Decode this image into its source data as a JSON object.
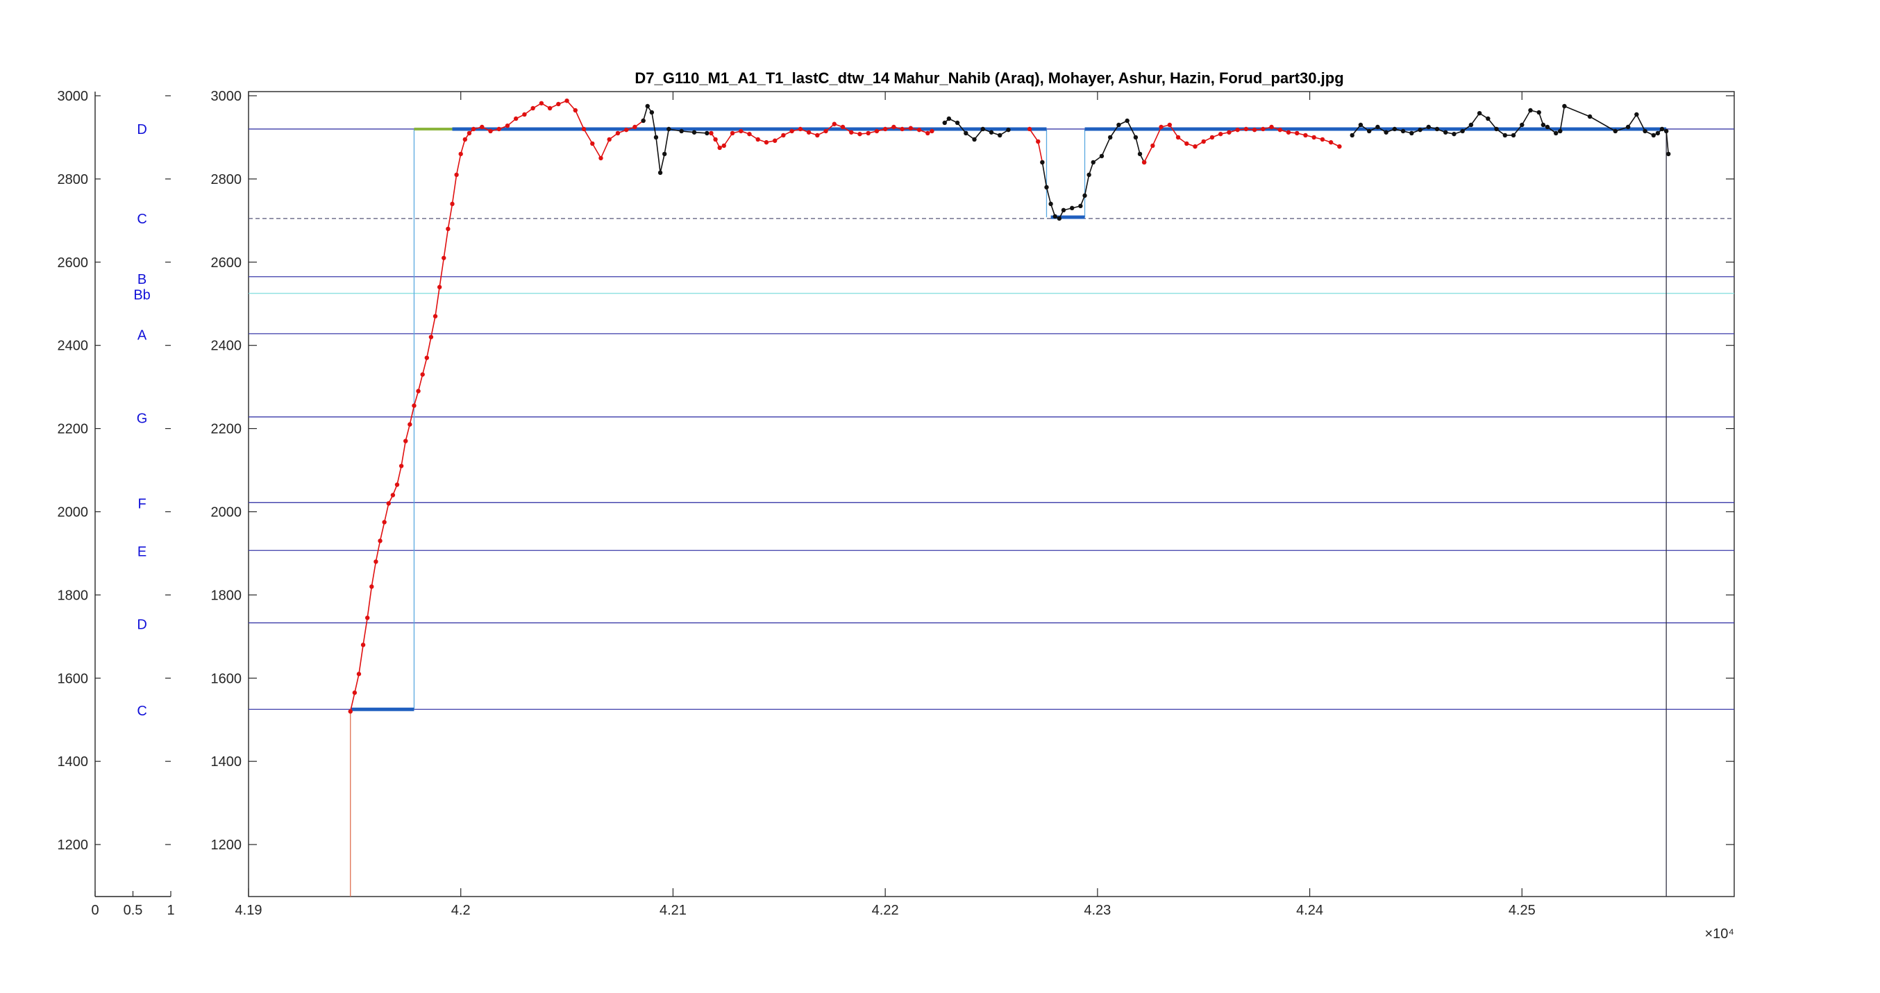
{
  "chart_data": [
    {
      "type": "scatter",
      "role": "note-axis",
      "xticks": [
        "0",
        "0.5",
        "1"
      ],
      "xlim": [
        0,
        1
      ],
      "ylim": [
        1075,
        3010
      ],
      "yticks": [
        "1200",
        "1400",
        "1600",
        "1800",
        "2000",
        "2200",
        "2400",
        "2600",
        "2800",
        "3000"
      ],
      "notes": [
        {
          "label": "D",
          "y": 2920
        },
        {
          "label": "C",
          "y": 2705
        },
        {
          "label": "B",
          "y": 2560
        },
        {
          "label": "Bb",
          "y": 2522
        },
        {
          "label": "A",
          "y": 2425
        },
        {
          "label": "G",
          "y": 2225
        },
        {
          "label": "F",
          "y": 2020
        },
        {
          "label": "E",
          "y": 1905
        },
        {
          "label": "D",
          "y": 1730
        },
        {
          "label": "C",
          "y": 1522
        }
      ]
    },
    {
      "type": "line",
      "role": "pitch-track",
      "title": "D7_G110_M1_A1_T1_lastC_dtw_14 Mahur_Nahib (Araq), Mohayer, Ashur, Hazin, Forud_part30.jpg",
      "xlabel": "",
      "ylabel": "",
      "x_exponent": "×10⁴",
      "xlim": [
        4.19,
        4.26
      ],
      "ylim": [
        1075,
        3010
      ],
      "xticks": [
        "4.19",
        "4.2",
        "4.21",
        "4.22",
        "4.23",
        "4.24",
        "4.25"
      ],
      "xtick_values": [
        4.19,
        4.2,
        4.21,
        4.22,
        4.23,
        4.24,
        4.25
      ],
      "yticks": [
        "1200",
        "1400",
        "1600",
        "1800",
        "2000",
        "2200",
        "2400",
        "2600",
        "2800",
        "3000"
      ],
      "ytick_values": [
        1200,
        1400,
        1600,
        1800,
        2000,
        2200,
        2400,
        2600,
        2800,
        3000
      ],
      "grid": false,
      "reference_lines": [
        {
          "y": 2920,
          "color": "#3a3aa8",
          "style": "solid"
        },
        {
          "y": 2705,
          "color": "#555577",
          "style": "dashed"
        },
        {
          "y": 2565,
          "color": "#3a3aa8",
          "style": "solid"
        },
        {
          "y": 2525,
          "color": "#7fdede",
          "style": "solid"
        },
        {
          "y": 2428,
          "color": "#3a3aa8",
          "style": "solid"
        },
        {
          "y": 2228,
          "color": "#3a3aa8",
          "style": "solid"
        },
        {
          "y": 2022,
          "color": "#3a3aa8",
          "style": "solid"
        },
        {
          "y": 1907,
          "color": "#3a3aa8",
          "style": "solid"
        },
        {
          "y": 1733,
          "color": "#3a3aa8",
          "style": "solid"
        },
        {
          "y": 1525,
          "color": "#3a3aa8",
          "style": "solid"
        }
      ],
      "steps": {
        "color": "#1f5fbf",
        "segments": [
          {
            "x": [
              4.1948,
              4.1978
            ],
            "y": 1525
          },
          {
            "x": [
              4.1996,
              4.2276
            ],
            "y": 2920
          },
          {
            "x": [
              4.2278,
              4.2294
            ],
            "y": 2708
          },
          {
            "x": [
              4.2294,
              4.2568
            ],
            "y": 2920
          }
        ],
        "green_segment": {
          "x": [
            4.1978,
            4.1996
          ],
          "y": 2920,
          "color": "#8ab43c"
        }
      },
      "transition_lines": [
        {
          "x": 4.1978,
          "y": [
            1525,
            2920
          ],
          "color": "#5aa8e0"
        },
        {
          "x": 4.2276,
          "y": [
            2920,
            2708
          ],
          "color": "#5aa8e0"
        },
        {
          "x": 4.2294,
          "y": [
            2708,
            2920
          ],
          "color": "#5aa8e0"
        },
        {
          "x": 4.1948,
          "y": [
            1075,
            1525
          ],
          "color": "#e07050"
        },
        {
          "x": 4.2568,
          "y": [
            1075,
            2920
          ],
          "color": "#333344"
        }
      ],
      "series": [
        {
          "color": "#e01010",
          "points": [
            [
              4.1948,
              1520
            ],
            [
              4.195,
              1565
            ],
            [
              4.1952,
              1610
            ],
            [
              4.1954,
              1680
            ],
            [
              4.1956,
              1745
            ],
            [
              4.1958,
              1820
            ],
            [
              4.196,
              1880
            ],
            [
              4.1962,
              1930
            ],
            [
              4.1964,
              1975
            ],
            [
              4.1966,
              2020
            ],
            [
              4.1968,
              2040
            ],
            [
              4.197,
              2065
            ],
            [
              4.1972,
              2110
            ],
            [
              4.1974,
              2170
            ],
            [
              4.1976,
              2210
            ],
            [
              4.1978,
              2255
            ],
            [
              4.198,
              2290
            ],
            [
              4.1982,
              2330
            ],
            [
              4.1984,
              2370
            ],
            [
              4.1986,
              2420
            ],
            [
              4.1988,
              2470
            ],
            [
              4.199,
              2540
            ],
            [
              4.1992,
              2610
            ],
            [
              4.1994,
              2680
            ],
            [
              4.1996,
              2740
            ],
            [
              4.1998,
              2810
            ],
            [
              4.2,
              2860
            ],
            [
              4.2002,
              2895
            ],
            [
              4.2004,
              2910
            ],
            [
              4.2006,
              2920
            ],
            [
              4.201,
              2925
            ],
            [
              4.2014,
              2915
            ],
            [
              4.2018,
              2920
            ],
            [
              4.2022,
              2928
            ],
            [
              4.2026,
              2945
            ],
            [
              4.203,
              2955
            ],
            [
              4.2034,
              2970
            ],
            [
              4.2038,
              2982
            ],
            [
              4.2042,
              2970
            ],
            [
              4.2046,
              2980
            ],
            [
              4.205,
              2988
            ],
            [
              4.2054,
              2965
            ],
            [
              4.2058,
              2920
            ],
            [
              4.2062,
              2885
            ],
            [
              4.2066,
              2850
            ],
            [
              4.207,
              2895
            ],
            [
              4.2074,
              2910
            ],
            [
              4.2078,
              2918
            ],
            [
              4.2082,
              2925
            ],
            [
              4.2086,
              2940
            ]
          ]
        },
        {
          "color": "#111111",
          "points": [
            [
              4.2086,
              2940
            ],
            [
              4.2088,
              2975
            ],
            [
              4.209,
              2960
            ],
            [
              4.2092,
              2900
            ],
            [
              4.2094,
              2815
            ],
            [
              4.2096,
              2860
            ],
            [
              4.2098,
              2920
            ],
            [
              4.2104,
              2915
            ],
            [
              4.211,
              2912
            ],
            [
              4.2116,
              2910
            ]
          ]
        },
        {
          "color": "#e01010",
          "points": [
            [
              4.2118,
              2910
            ],
            [
              4.212,
              2895
            ],
            [
              4.2122,
              2875
            ],
            [
              4.2124,
              2880
            ],
            [
              4.2128,
              2910
            ],
            [
              4.2132,
              2915
            ],
            [
              4.2136,
              2908
            ],
            [
              4.214,
              2895
            ],
            [
              4.2144,
              2888
            ],
            [
              4.2148,
              2892
            ],
            [
              4.2152,
              2905
            ],
            [
              4.2156,
              2915
            ],
            [
              4.216,
              2920
            ],
            [
              4.2164,
              2912
            ],
            [
              4.2168,
              2905
            ],
            [
              4.2172,
              2915
            ],
            [
              4.2176,
              2932
            ],
            [
              4.218,
              2925
            ],
            [
              4.2184,
              2912
            ],
            [
              4.2188,
              2908
            ],
            [
              4.2192,
              2910
            ],
            [
              4.2196,
              2915
            ],
            [
              4.22,
              2920
            ],
            [
              4.2204,
              2925
            ],
            [
              4.2208,
              2920
            ],
            [
              4.2212,
              2922
            ],
            [
              4.2216,
              2918
            ],
            [
              4.222,
              2910
            ],
            [
              4.2222,
              2915
            ]
          ]
        },
        {
          "color": "#111111",
          "points": [
            [
              4.2228,
              2935
            ],
            [
              4.223,
              2945
            ],
            [
              4.2234,
              2935
            ],
            [
              4.2238,
              2910
            ],
            [
              4.2242,
              2895
            ],
            [
              4.2246,
              2920
            ],
            [
              4.225,
              2912
            ],
            [
              4.2254,
              2905
            ],
            [
              4.2258,
              2918
            ]
          ]
        },
        {
          "color": "#e01010",
          "points": [
            [
              4.2268,
              2920
            ],
            [
              4.2272,
              2890
            ],
            [
              4.2274,
              2840
            ]
          ]
        },
        {
          "color": "#111111",
          "points": [
            [
              4.2274,
              2840
            ],
            [
              4.2276,
              2780
            ],
            [
              4.2278,
              2740
            ],
            [
              4.228,
              2710
            ],
            [
              4.2282,
              2705
            ],
            [
              4.2284,
              2725
            ],
            [
              4.2288,
              2730
            ],
            [
              4.2292,
              2735
            ],
            [
              4.2294,
              2760
            ],
            [
              4.2296,
              2810
            ],
            [
              4.2298,
              2840
            ],
            [
              4.2302,
              2855
            ],
            [
              4.2306,
              2900
            ],
            [
              4.231,
              2930
            ],
            [
              4.2314,
              2940
            ],
            [
              4.2318,
              2900
            ],
            [
              4.232,
              2860
            ],
            [
              4.2322,
              2840
            ]
          ]
        },
        {
          "color": "#e01010",
          "points": [
            [
              4.2322,
              2840
            ],
            [
              4.2326,
              2880
            ],
            [
              4.233,
              2925
            ],
            [
              4.2334,
              2930
            ],
            [
              4.2338,
              2900
            ],
            [
              4.2342,
              2885
            ],
            [
              4.2346,
              2878
            ],
            [
              4.235,
              2890
            ],
            [
              4.2354,
              2900
            ],
            [
              4.2358,
              2908
            ],
            [
              4.2362,
              2912
            ],
            [
              4.2366,
              2918
            ],
            [
              4.237,
              2920
            ],
            [
              4.2374,
              2918
            ],
            [
              4.2378,
              2920
            ],
            [
              4.2382,
              2925
            ],
            [
              4.2386,
              2918
            ],
            [
              4.239,
              2912
            ],
            [
              4.2394,
              2910
            ],
            [
              4.2398,
              2905
            ],
            [
              4.2402,
              2900
            ],
            [
              4.2406,
              2895
            ],
            [
              4.241,
              2888
            ],
            [
              4.2414,
              2878
            ]
          ]
        },
        {
          "color": "#111111",
          "points": [
            [
              4.242,
              2905
            ],
            [
              4.2424,
              2930
            ],
            [
              4.2428,
              2915
            ],
            [
              4.2432,
              2925
            ],
            [
              4.2436,
              2912
            ],
            [
              4.244,
              2920
            ],
            [
              4.2444,
              2915
            ],
            [
              4.2448,
              2910
            ],
            [
              4.2452,
              2918
            ],
            [
              4.2456,
              2925
            ],
            [
              4.246,
              2920
            ],
            [
              4.2464,
              2912
            ],
            [
              4.2468,
              2908
            ],
            [
              4.2472,
              2915
            ],
            [
              4.2476,
              2930
            ],
            [
              4.248,
              2958
            ],
            [
              4.2484,
              2945
            ],
            [
              4.2488,
              2920
            ],
            [
              4.2492,
              2905
            ],
            [
              4.2496,
              2905
            ],
            [
              4.25,
              2930
            ],
            [
              4.2504,
              2965
            ],
            [
              4.2508,
              2960
            ],
            [
              4.251,
              2930
            ],
            [
              4.2512,
              2925
            ],
            [
              4.2516,
              2910
            ],
            [
              4.2518,
              2915
            ],
            [
              4.252,
              2975
            ],
            [
              4.2532,
              2950
            ],
            [
              4.2544,
              2915
            ],
            [
              4.255,
              2925
            ],
            [
              4.2554,
              2955
            ],
            [
              4.2558,
              2915
            ],
            [
              4.2562,
              2905
            ],
            [
              4.2564,
              2910
            ],
            [
              4.2566,
              2920
            ],
            [
              4.2568,
              2915
            ],
            [
              4.2569,
              2860
            ]
          ]
        }
      ]
    }
  ]
}
